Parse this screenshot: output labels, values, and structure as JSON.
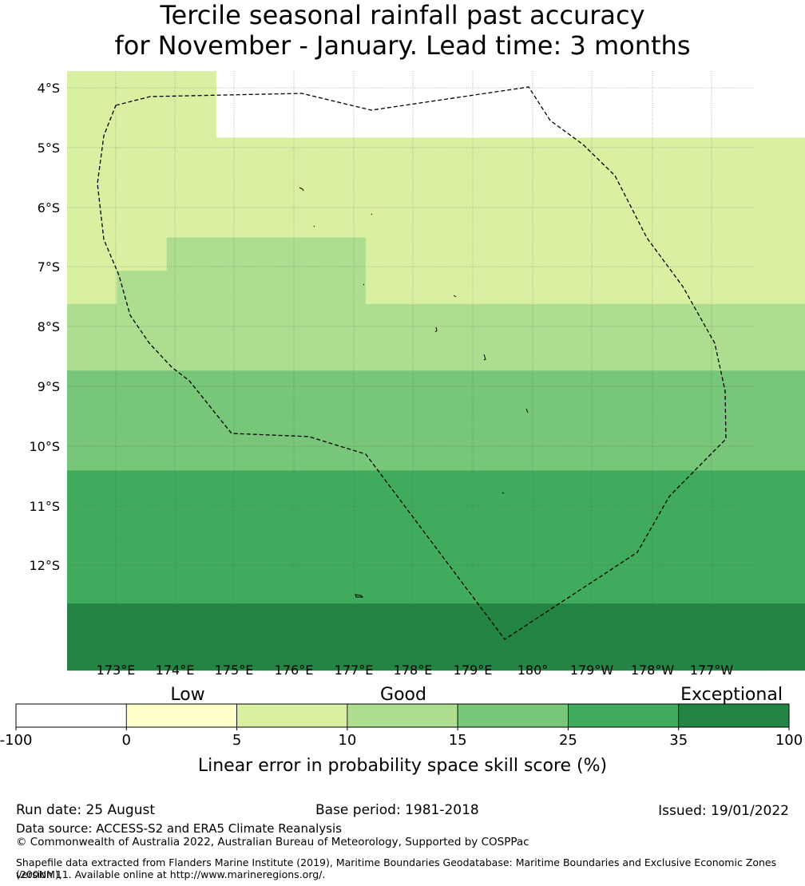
{
  "title": {
    "line1": "Tercile seasonal rainfall past accuracy",
    "line2": "for November - January. Lead time: 3 months"
  },
  "map": {
    "lat_labels": [
      "4°S",
      "5°S",
      "6°S",
      "7°S",
      "8°S",
      "9°S",
      "10°S",
      "11°S",
      "12°S"
    ],
    "lon_labels": [
      "173°E",
      "174°E",
      "175°E",
      "176°E",
      "177°E",
      "178°E",
      "179°E",
      "180°",
      "179°W",
      "178°W",
      "177°W"
    ],
    "grid": [
      "2220000000000000000000000000",
      "2220000000000000000000000000",
      "2222222222222222222222222222",
      "2222222222222222222222222222",
      "2222222222222222222222222222",
      "2233332222222222222222222222",
      "2333332222222222222222222222",
      "3333333333333333333333333333",
      "3333333333333333333333333333",
      "4444444444444444444444444444",
      "4444444444444444444444444444",
      "4444444444444444444444444444",
      "5555555555555555555555555555",
      "5555555555555555555555555555",
      "5555555555555555555555555555",
      "5555555555555555555555555555",
      "6666666666666666666666666666",
      "6666666666666666666666666666"
    ],
    "colors": {
      "0": "#ffffff",
      "1": "#ffffcc",
      "2": "#d9f0a3",
      "3": "#addd8e",
      "4": "#78c679",
      "5": "#41ab5d",
      "6": "#238443"
    }
  },
  "colorbar": {
    "category_labels": [
      "Low",
      "Good",
      "Exceptional"
    ],
    "ticks": [
      "-100",
      "0",
      "5",
      "10",
      "15",
      "25",
      "35",
      "100"
    ],
    "label": "Linear error in probability space skill score (%)",
    "colors": [
      "#ffffff",
      "#ffffcc",
      "#d9f0a3",
      "#addd8e",
      "#78c679",
      "#41ab5d",
      "#238443"
    ]
  },
  "footer": {
    "run_date": "Run date: 25 August",
    "base_period": "Base period: 1981-2018",
    "issued": "Issued: 19/01/2022",
    "data_source": "Data source: ACCESS-S2 and ERA5 Climate Reanalysis",
    "copyright": "© Commonwealth of Australia 2022, Australian Bureau of Meteorology, Supported by COSPPac",
    "shapefile_line1": "Shapefile data extracted from Flanders Marine Institute (2019), Maritime Boundaries Geodatabase: Maritime Boundaries and Exclusive Economic Zones (200NM),",
    "shapefile_line2": "version 11. Available online at http://www.marineregions.org/."
  }
}
